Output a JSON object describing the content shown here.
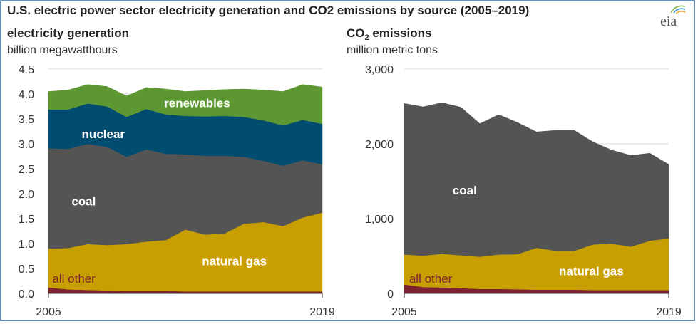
{
  "title": "U.S. electric power sector electricity generation and CO2 emissions by source (2005–2019)",
  "logo": {
    "text": "eia",
    "icon": "eia-logo-icon"
  },
  "colors": {
    "renewables": "#5d9732",
    "nuclear": "#004d71",
    "coal": "#545454",
    "natural_gas": "#c89f00",
    "all_other": "#7b2330",
    "grid": "#d9d9d9",
    "axis_text": "#333333",
    "label_light": "#ffffff",
    "label_dark": "#7b2330"
  },
  "chart_data": [
    {
      "type": "area",
      "stacked": true,
      "title": "electricity generation",
      "subtitle": "billion megawatthours",
      "x": [
        2005,
        2006,
        2007,
        2008,
        2009,
        2010,
        2011,
        2012,
        2013,
        2014,
        2015,
        2016,
        2017,
        2018,
        2019
      ],
      "x_tick_labels": [
        "2005",
        "2019"
      ],
      "ylim": [
        0,
        4.5
      ],
      "yticks": [
        "0.0",
        "0.5",
        "1.0",
        "1.5",
        "2.0",
        "2.5",
        "3.0",
        "3.5",
        "4.0",
        "4.5"
      ],
      "grid": true,
      "series": [
        {
          "name": "all other",
          "color_key": "all_other",
          "values": [
            0.12,
            0.08,
            0.07,
            0.06,
            0.05,
            0.05,
            0.05,
            0.04,
            0.04,
            0.04,
            0.04,
            0.04,
            0.04,
            0.04,
            0.04
          ]
        },
        {
          "name": "natural gas",
          "color_key": "natural_gas",
          "values": [
            0.78,
            0.83,
            0.92,
            0.91,
            0.94,
            0.99,
            1.02,
            1.24,
            1.14,
            1.16,
            1.36,
            1.39,
            1.31,
            1.48,
            1.58
          ]
        },
        {
          "name": "coal",
          "color_key": "coal",
          "values": [
            2.01,
            1.99,
            2.01,
            1.97,
            1.75,
            1.85,
            1.73,
            1.51,
            1.58,
            1.56,
            1.34,
            1.23,
            1.21,
            1.15,
            0.97
          ]
        },
        {
          "name": "nuclear",
          "color_key": "nuclear",
          "values": [
            0.78,
            0.79,
            0.81,
            0.81,
            0.8,
            0.81,
            0.79,
            0.77,
            0.79,
            0.8,
            0.8,
            0.81,
            0.81,
            0.81,
            0.81
          ]
        },
        {
          "name": "renewables",
          "color_key": "renewables",
          "values": [
            0.36,
            0.39,
            0.38,
            0.4,
            0.42,
            0.43,
            0.51,
            0.49,
            0.52,
            0.53,
            0.56,
            0.61,
            0.68,
            0.71,
            0.74
          ]
        }
      ],
      "labels": [
        {
          "text": "renewables",
          "series": "renewables",
          "x": 2012.6,
          "y": 3.82,
          "tone": "label_light",
          "bold": true
        },
        {
          "text": "nuclear",
          "series": "nuclear",
          "x": 2007.8,
          "y": 3.2,
          "tone": "label_light",
          "bold": true
        },
        {
          "text": "coal",
          "series": "coal",
          "x": 2006.8,
          "y": 1.85,
          "tone": "label_light",
          "bold": true
        },
        {
          "text": "natural gas",
          "series": "natural gas",
          "x": 2014.5,
          "y": 0.65,
          "tone": "label_light",
          "bold": true
        },
        {
          "text": "all other",
          "series": "all other",
          "x": 2006.3,
          "y": 0.3,
          "tone": "label_dark",
          "bold": false
        }
      ]
    },
    {
      "type": "area",
      "stacked": true,
      "title": "CO₂ emissions",
      "subtitle": "million metric tons",
      "x": [
        2005,
        2006,
        2007,
        2008,
        2009,
        2010,
        2011,
        2012,
        2013,
        2014,
        2015,
        2016,
        2017,
        2018,
        2019
      ],
      "x_tick_labels": [
        "2005",
        "2019"
      ],
      "ylim": [
        0,
        3000
      ],
      "yticks": [
        "0",
        "1,000",
        "2,000",
        "3,000"
      ],
      "grid": true,
      "series": [
        {
          "name": "all other",
          "color_key": "all_other",
          "values": [
            120,
            85,
            80,
            70,
            60,
            60,
            55,
            50,
            50,
            50,
            45,
            45,
            45,
            45,
            45
          ]
        },
        {
          "name": "natural gas",
          "color_key": "natural_gas",
          "values": [
            400,
            420,
            450,
            440,
            430,
            460,
            470,
            560,
            520,
            520,
            610,
            620,
            580,
            660,
            690
          ]
        },
        {
          "name": "coal",
          "color_key": "coal",
          "values": [
            2020,
            1990,
            2020,
            1980,
            1780,
            1870,
            1760,
            1550,
            1610,
            1610,
            1370,
            1250,
            1220,
            1170,
            990
          ]
        }
      ],
      "labels": [
        {
          "text": "coal",
          "series": "coal",
          "x": 2008.2,
          "y": 1380,
          "tone": "label_light",
          "bold": true
        },
        {
          "text": "natural gas",
          "series": "natural gas",
          "x": 2014.9,
          "y": 300,
          "tone": "label_light",
          "bold": true
        },
        {
          "text": "all other",
          "series": "all other",
          "x": 2006.4,
          "y": 200,
          "tone": "label_dark",
          "bold": false
        }
      ]
    }
  ]
}
